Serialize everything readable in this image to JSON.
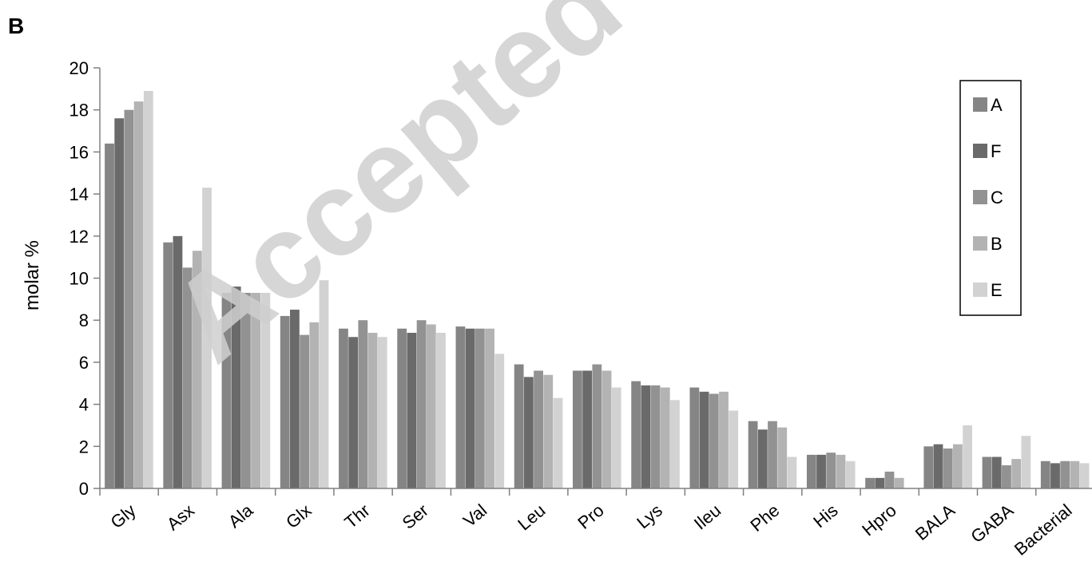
{
  "panel_label": "B",
  "watermark": "Accepted manuscript",
  "chart_data": {
    "type": "bar",
    "title": "",
    "xlabel": "",
    "ylabel": "molar  %",
    "ylim": [
      0,
      20
    ],
    "yticks": [
      0,
      2,
      4,
      6,
      8,
      10,
      12,
      14,
      16,
      18,
      20
    ],
    "grid": false,
    "legend_position": "top-right",
    "categories": [
      "Gly",
      "Asx",
      "Ala",
      "Glx",
      "Thr",
      "Ser",
      "Val",
      "Leu",
      "Pro",
      "Lys",
      "Ileu",
      "Phe",
      "His",
      "Hpro",
      "BALA",
      "GABA",
      "Bacterial"
    ],
    "series": [
      {
        "name": "A",
        "color": "#858585",
        "values": [
          16.4,
          11.7,
          9.3,
          8.2,
          7.6,
          7.6,
          7.7,
          5.9,
          5.6,
          5.1,
          4.8,
          3.2,
          1.6,
          0.5,
          2.0,
          1.5,
          1.3
        ]
      },
      {
        "name": "F",
        "color": "#6a6a6a",
        "values": [
          17.6,
          12.0,
          9.6,
          8.5,
          7.2,
          7.4,
          7.6,
          5.3,
          5.6,
          4.9,
          4.6,
          2.8,
          1.6,
          0.5,
          2.1,
          1.5,
          1.2
        ]
      },
      {
        "name": "C",
        "color": "#929292",
        "values": [
          18.0,
          10.5,
          9.3,
          7.3,
          8.0,
          8.0,
          7.6,
          5.6,
          5.9,
          4.9,
          4.5,
          3.2,
          1.7,
          0.8,
          1.9,
          1.1,
          1.3
        ]
      },
      {
        "name": "B",
        "color": "#b3b3b3",
        "values": [
          18.4,
          11.3,
          9.3,
          7.9,
          7.4,
          7.8,
          7.6,
          5.4,
          5.6,
          4.8,
          4.6,
          2.9,
          1.6,
          0.5,
          2.1,
          1.4,
          1.3
        ]
      },
      {
        "name": "E",
        "color": "#d2d2d2",
        "values": [
          18.9,
          14.3,
          9.3,
          9.9,
          7.2,
          7.4,
          6.4,
          4.3,
          4.8,
          4.2,
          3.7,
          1.5,
          1.3,
          0.0,
          3.0,
          2.5,
          1.2
        ]
      }
    ]
  }
}
